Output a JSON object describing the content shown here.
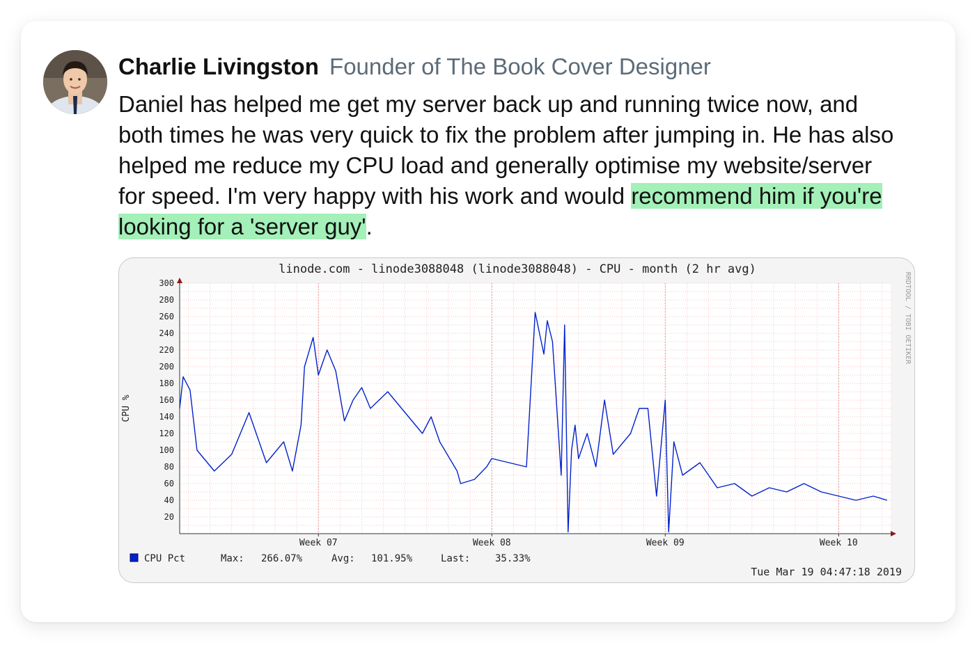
{
  "testimonial": {
    "name": "Charlie Livingston",
    "role": "Founder of The Book Cover Designer",
    "quote_plain": "Daniel has helped me get my server back up and running twice now, and both times he was very quick to fix the problem after jumping in. He has also helped me reduce my CPU load and generally optimise my website/server for speed. I'm very happy with his work and would ",
    "quote_highlight": "recommend him if you're looking for a 'server guy'",
    "quote_end": "."
  },
  "colors": {
    "highlight": "#a3f0b8",
    "series": "#0022cc",
    "grid": "#f3b3b3",
    "axis_arrow": "#8b1a1a"
  },
  "chart_data": {
    "type": "line",
    "title": "linode.com - linode3088048 (linode3088048) - CPU - month (2 hr avg)",
    "ylabel": "CPU %",
    "xlabel": "",
    "watermark": "RRDTOOL / TOBI OETIKER",
    "ylim": [
      0,
      300
    ],
    "yticks": [
      20,
      40,
      60,
      80,
      100,
      120,
      140,
      160,
      180,
      200,
      220,
      240,
      260,
      280,
      300
    ],
    "xlim": [
      6.2,
      10.3
    ],
    "xticks": [
      {
        "label": "Week 07",
        "value": 7
      },
      {
        "label": "Week 08",
        "value": 8
      },
      {
        "label": "Week 09",
        "value": 9
      },
      {
        "label": "Week 10",
        "value": 10
      }
    ],
    "grid": true,
    "legend_position": "bottom-left",
    "series": [
      {
        "name": "CPU Pct",
        "color": "#0022cc",
        "x": [
          6.2,
          6.22,
          6.26,
          6.3,
          6.4,
          6.5,
          6.6,
          6.7,
          6.8,
          6.85,
          6.9,
          6.92,
          6.97,
          7.0,
          7.05,
          7.1,
          7.15,
          7.2,
          7.25,
          7.3,
          7.4,
          7.5,
          7.6,
          7.65,
          7.7,
          7.8,
          7.82,
          7.9,
          7.97,
          8.0,
          8.1,
          8.2,
          8.25,
          8.3,
          8.32,
          8.35,
          8.4,
          8.42,
          8.44,
          8.46,
          8.48,
          8.5,
          8.55,
          8.6,
          8.65,
          8.7,
          8.8,
          8.85,
          8.9,
          8.95,
          9.0,
          9.02,
          9.05,
          9.1,
          9.2,
          9.3,
          9.4,
          9.5,
          9.6,
          9.7,
          9.8,
          9.9,
          10.0,
          10.1,
          10.2,
          10.28
        ],
        "y": [
          150,
          188,
          172,
          100,
          75,
          95,
          145,
          85,
          110,
          75,
          130,
          200,
          235,
          190,
          220,
          195,
          135,
          160,
          175,
          150,
          170,
          145,
          120,
          140,
          110,
          75,
          60,
          65,
          80,
          90,
          85,
          80,
          265,
          215,
          255,
          230,
          70,
          250,
          2,
          100,
          130,
          90,
          120,
          80,
          160,
          95,
          120,
          150,
          150,
          45,
          160,
          2,
          110,
          70,
          85,
          55,
          60,
          45,
          55,
          50,
          60,
          50,
          45,
          40,
          45,
          40
        ]
      }
    ],
    "stats": {
      "max_label": "Max:",
      "max": "266.07%",
      "avg_label": "Avg:",
      "avg": "101.95%",
      "last_label": "Last:",
      "last": "35.33%"
    },
    "timestamp": "Tue Mar 19 04:47:18 2019"
  }
}
